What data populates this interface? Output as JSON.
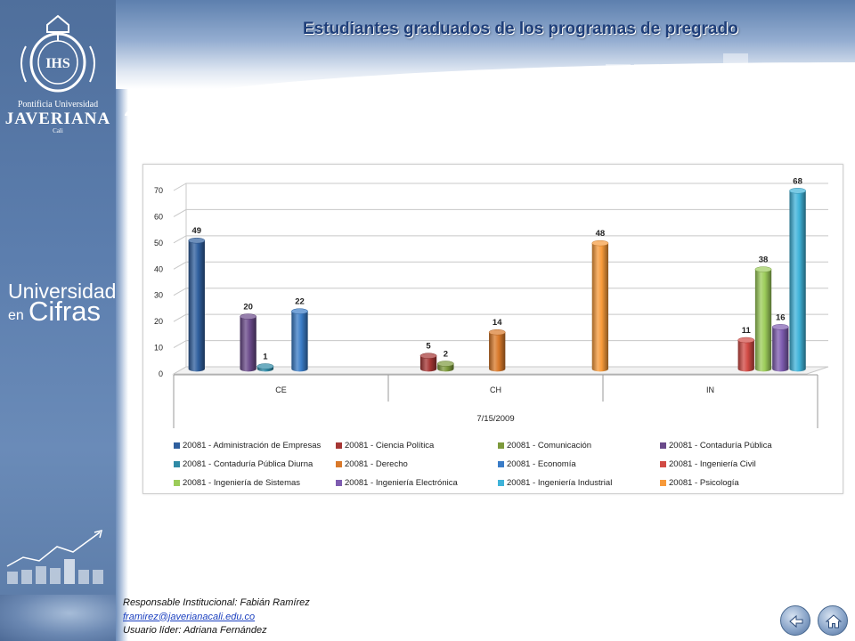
{
  "header": {
    "title": "Estudiantes graduados de los programas de pregrado"
  },
  "sidebar": {
    "institution_line1": "Pontificia Universidad",
    "institution_line2": "JAVERIANA",
    "institution_line3": "Cali",
    "seal_text": "IHS",
    "brand_line1": "Universidad",
    "brand_line2a": "en",
    "brand_line2b": "Cifras"
  },
  "chart_data": {
    "type": "bar",
    "title": "",
    "categories": [
      "CE",
      "CH",
      "IN"
    ],
    "xlabel": "7/15/2009",
    "ylabel": "",
    "ylim": [
      0,
      70
    ],
    "yticks": [
      0,
      10,
      20,
      30,
      40,
      50,
      60,
      70
    ],
    "legend_position": "bottom",
    "series": [
      {
        "name": "20081 - Administración de Empresas",
        "color": "#2f5f9e",
        "values": [
          49,
          null,
          null
        ]
      },
      {
        "name": "20081 - Ciencia Política",
        "color": "#a53634",
        "values": [
          null,
          5,
          null
        ]
      },
      {
        "name": "20081 - Comunicación",
        "color": "#7d9a3c",
        "values": [
          null,
          2,
          null
        ]
      },
      {
        "name": "20081 - Contaduría Pública",
        "color": "#6a4a8a",
        "values": [
          20,
          null,
          null
        ]
      },
      {
        "name": "20081 - Contaduría Pública Diurna",
        "color": "#2f8aa6",
        "values": [
          1,
          null,
          null
        ]
      },
      {
        "name": "20081 - Derecho",
        "color": "#d9792a",
        "values": [
          null,
          14,
          null
        ]
      },
      {
        "name": "20081 - Economía",
        "color": "#3a7cc7",
        "values": [
          22,
          null,
          null
        ]
      },
      {
        "name": "20081 - Ingeniería Civil",
        "color": "#d14a44",
        "values": [
          null,
          null,
          11
        ]
      },
      {
        "name": "20081 - Ingeniería de Sistemas",
        "color": "#9ccc5a",
        "values": [
          null,
          null,
          38
        ]
      },
      {
        "name": "20081 - Ingeniería Electrónica",
        "color": "#7e5cb0",
        "values": [
          null,
          null,
          16
        ]
      },
      {
        "name": "20081 - Ingeniería Industrial",
        "color": "#3fb3d9",
        "values": [
          null,
          null,
          68
        ]
      },
      {
        "name": "20081 - Psicología",
        "color": "#f79a3a",
        "values": [
          null,
          48,
          null
        ]
      }
    ],
    "bar_order": [
      {
        "category": "CE",
        "series": [
          0,
          3,
          4,
          6
        ]
      },
      {
        "category": "CH",
        "series": [
          1,
          2,
          5,
          11
        ]
      },
      {
        "category": "IN",
        "series": [
          7,
          8,
          9,
          10
        ]
      }
    ]
  },
  "footer": {
    "responsible": "Responsable  Institucional: Fabián Ramírez",
    "email": "framirez@javerianacali.edu.co",
    "leader": "Usuario líder: Adriana Fernández"
  },
  "nav": {
    "back_icon": "back-arrow-icon",
    "home_icon": "home-icon"
  }
}
